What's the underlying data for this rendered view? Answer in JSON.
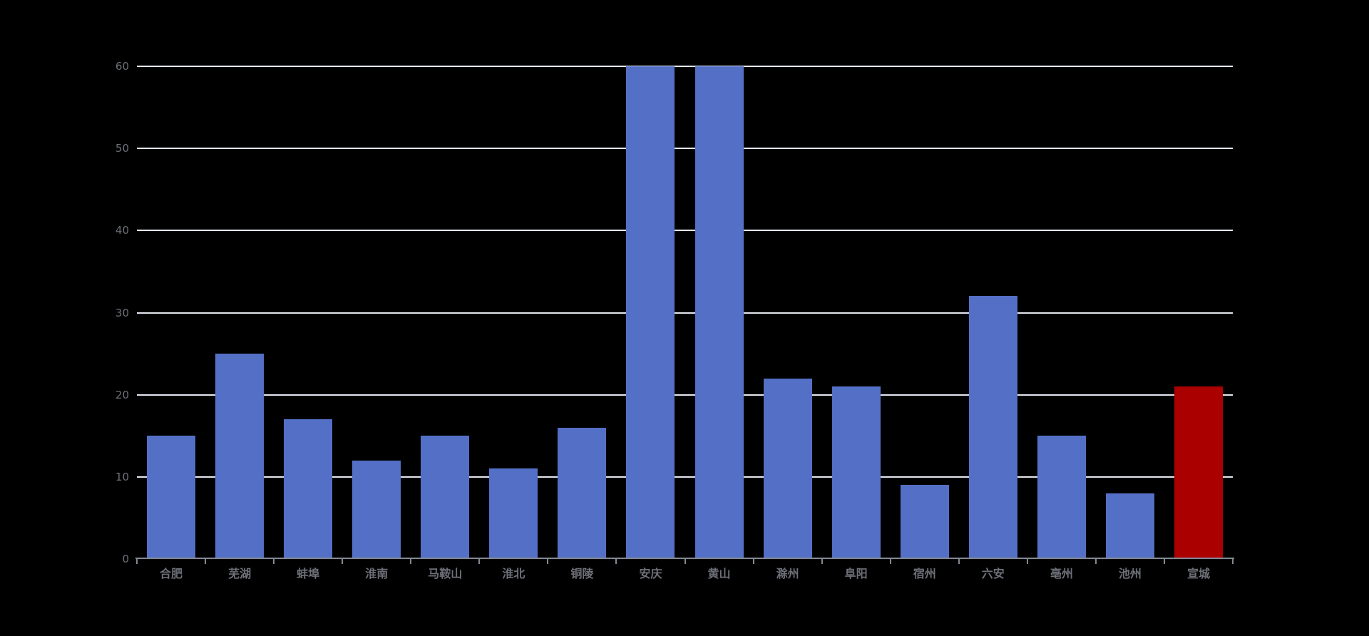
{
  "chart_data": {
    "type": "bar",
    "title": "",
    "xlabel": "",
    "ylabel": "",
    "categories": [
      "合肥",
      "芜湖",
      "蚌埠",
      "淮南",
      "马鞍山",
      "淮北",
      "铜陵",
      "安庆",
      "黄山",
      "滁州",
      "阜阳",
      "宿州",
      "六安",
      "亳州",
      "池州",
      "宣城"
    ],
    "values": [
      15,
      25,
      17,
      12,
      15,
      11,
      16,
      60,
      60,
      22,
      21,
      9,
      32,
      15,
      8,
      21
    ],
    "highlight_index": 15,
    "ylim": [
      0,
      60
    ],
    "yticks": [
      0,
      10,
      20,
      30,
      40,
      50,
      60
    ],
    "grid": true,
    "legend": "none",
    "colors": {
      "background": "#000000",
      "bar": "#5470C6",
      "highlight_bar": "#AA0000",
      "gridline": "#E4E7F0",
      "axis": "#828893",
      "label": "#6E7079"
    }
  }
}
